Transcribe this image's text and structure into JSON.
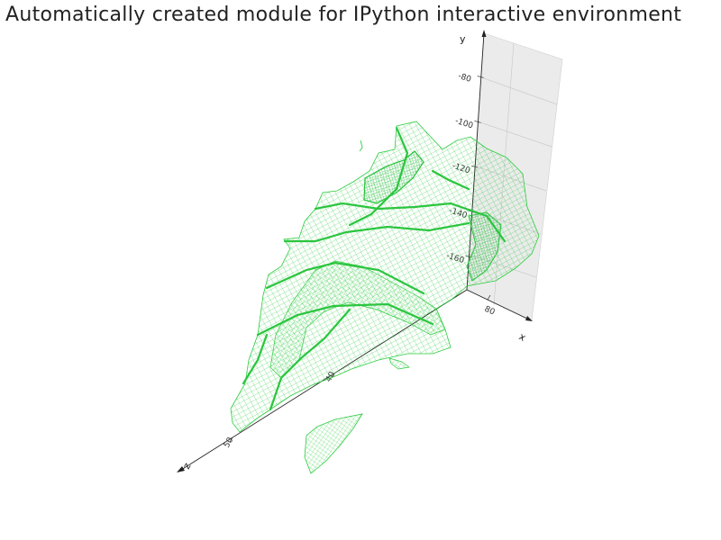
{
  "figure": {
    "title": "Automatically created module for IPython interactive environment"
  },
  "axes": {
    "x_label": "x",
    "y_label": "y",
    "z_label": "z",
    "x_ticks": [
      "80"
    ],
    "y_ticks": [
      "-80",
      "-100",
      "-120",
      "-140",
      "-160"
    ],
    "z_ticks": [
      "40",
      "50"
    ],
    "pane_color": "#ebebeb",
    "axis_color": "#222222"
  },
  "mesh": {
    "color": "#2ecc40",
    "style": "wireframe"
  }
}
